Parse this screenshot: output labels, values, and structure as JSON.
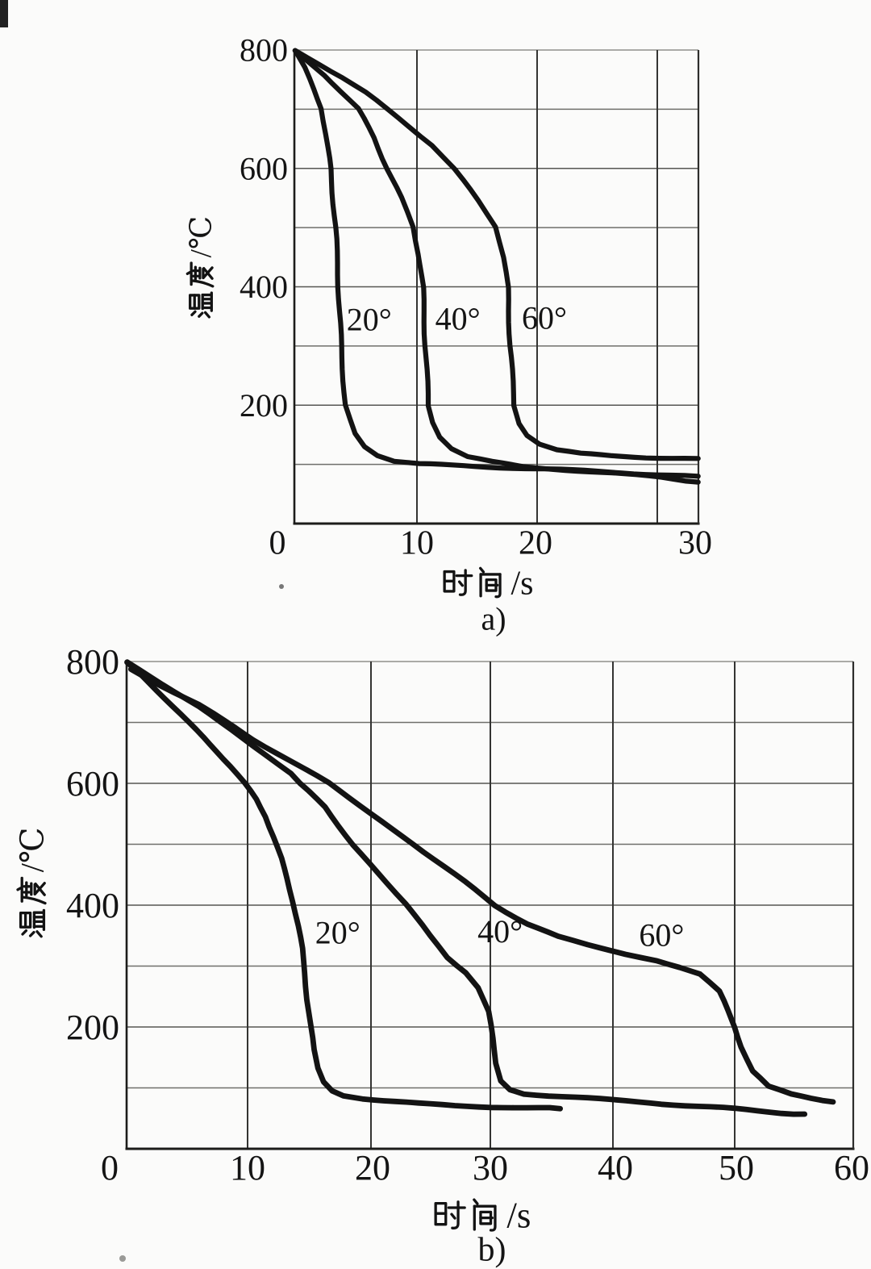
{
  "figure": {
    "background": "#fbfbfa",
    "ink": "#131313",
    "charts": [
      {
        "id": "a",
        "caption": "a)",
        "x_axis_title": "时间/s",
        "y_axis_title": "温度/℃",
        "type": "line",
        "xlim": [
          0,
          33.4
        ],
        "ylim": [
          0,
          800
        ],
        "x_ticks": [
          "0",
          "10",
          "20",
          "30"
        ],
        "y_ticks": [
          "200",
          "400",
          "600",
          "800"
        ],
        "grid": true,
        "series": [
          {
            "name": "20°",
            "label_t": 6.1,
            "label_T": 345,
            "points": [
              [
                0.1,
                798
              ],
              [
                0.8,
                772
              ],
              [
                1.6,
                733
              ],
              [
                2.24,
                700
              ],
              [
                2.7,
                635
              ],
              [
                2.96,
                600
              ],
              [
                3.36,
                500
              ],
              [
                3.6,
                400
              ],
              [
                3.82,
                300
              ],
              [
                4.14,
                200
              ],
              [
                4.5,
                176
              ],
              [
                4.9,
                153
              ],
              [
                5.7,
                131
              ],
              [
                6.8,
                116
              ],
              [
                8.2,
                106
              ],
              [
                10.2,
                101
              ],
              [
                12.9,
                98
              ],
              [
                16.9,
                95
              ],
              [
                21,
                92
              ],
              [
                25,
                88
              ],
              [
                29,
                84
              ],
              [
                33.4,
                80
              ]
            ]
          },
          {
            "name": "40°",
            "label_t": 13.4,
            "label_T": 346,
            "points": [
              [
                0,
                800
              ],
              [
                2.5,
                757
              ],
              [
                5.2,
                700
              ],
              [
                6.5,
                652
              ],
              [
                7.6,
                600
              ],
              [
                8.7,
                550
              ],
              [
                9.7,
                500
              ],
              [
                10.15,
                455
              ],
              [
                10.5,
                400
              ],
              [
                10.7,
                300
              ],
              [
                10.95,
                200
              ],
              [
                11.35,
                172
              ],
              [
                11.95,
                147
              ],
              [
                12.9,
                127
              ],
              [
                14.2,
                113
              ],
              [
                16.2,
                104
              ],
              [
                18.9,
                96
              ],
              [
                22.3,
                91
              ],
              [
                26.3,
                85
              ],
              [
                30.3,
                78
              ],
              [
                33.4,
                70
              ]
            ]
          },
          {
            "name": "60°",
            "label_t": 20.6,
            "label_T": 348,
            "points": [
              [
                0,
                800
              ],
              [
                2,
                777
              ],
              [
                4,
                753
              ],
              [
                5.8,
                728
              ],
              [
                7.5,
                700
              ],
              [
                9.4,
                670
              ],
              [
                11.3,
                640
              ],
              [
                13.1,
                600
              ],
              [
                15.1,
                545
              ],
              [
                16.6,
                500
              ],
              [
                17.2,
                450
              ],
              [
                17.56,
                400
              ],
              [
                17.76,
                300
              ],
              [
                18.1,
                200
              ],
              [
                18.56,
                170
              ],
              [
                19.2,
                150
              ],
              [
                20.2,
                135
              ],
              [
                21.6,
                125
              ],
              [
                23.6,
                118
              ],
              [
                26.3,
                114
              ],
              [
                29,
                112
              ],
              [
                33.4,
                110
              ]
            ]
          }
        ]
      },
      {
        "id": "b",
        "caption": "b)",
        "x_axis_title": "时间/s",
        "y_axis_title": "温度/℃",
        "type": "line",
        "xlim": [
          0,
          60
        ],
        "ylim": [
          0,
          800
        ],
        "x_ticks": [
          "0",
          "10",
          "20",
          "30",
          "40",
          "50",
          "60"
        ],
        "y_ticks": [
          "200",
          "400",
          "600",
          "800"
        ],
        "grid": true,
        "series": [
          {
            "name": "20°",
            "label_t": 17.3,
            "label_T": 355,
            "points": [
              [
                0,
                800
              ],
              [
                1.2,
                778
              ],
              [
                2.5,
                752
              ],
              [
                3.8,
                726
              ],
              [
                5.1,
                700
              ],
              [
                6.3,
                677
              ],
              [
                7.5,
                653
              ],
              [
                8.6,
                628
              ],
              [
                9.7,
                600
              ],
              [
                10.7,
                573
              ],
              [
                11.5,
                545
              ],
              [
                12.1,
                513
              ],
              [
                12.7,
                478
              ],
              [
                13.2,
                443
              ],
              [
                13.7,
                405
              ],
              [
                14.1,
                365
              ],
              [
                14.4,
                330
              ],
              [
                14.65,
                290
              ],
              [
                14.85,
                245
              ],
              [
                15.1,
                200
              ],
              [
                15.35,
                162
              ],
              [
                15.7,
                132
              ],
              [
                16.2,
                110
              ],
              [
                16.9,
                96
              ],
              [
                17.8,
                88
              ],
              [
                19.3,
                83
              ],
              [
                21,
                79
              ],
              [
                24,
                74
              ],
              [
                27,
                71
              ],
              [
                30,
                69
              ],
              [
                33,
                67
              ],
              [
                35.7,
                66
              ]
            ]
          },
          {
            "name": "40°",
            "label_t": 30.8,
            "label_T": 357,
            "points": [
              [
                0,
                800
              ],
              [
                2,
                775
              ],
              [
                4,
                750
              ],
              [
                6,
                725
              ],
              [
                7.7,
                700
              ],
              [
                9.5,
                676
              ],
              [
                11.5,
                648
              ],
              [
                13.5,
                617
              ],
              [
                14.2,
                600
              ],
              [
                16.3,
                560
              ],
              [
                18.5,
                500
              ],
              [
                20.5,
                455
              ],
              [
                23,
                400
              ],
              [
                24.9,
                350
              ],
              [
                26.4,
                315
              ],
              [
                28,
                290
              ],
              [
                29,
                265
              ],
              [
                29.8,
                225
              ],
              [
                30.2,
                180
              ],
              [
                30.5,
                140
              ],
              [
                30.9,
                112
              ],
              [
                31.6,
                98
              ],
              [
                32.7,
                91
              ],
              [
                34.7,
                87
              ],
              [
                37,
                84
              ],
              [
                40,
                80
              ],
              [
                43,
                76
              ],
              [
                46,
                71
              ],
              [
                49,
                67
              ],
              [
                52,
                62
              ],
              [
                54,
                59
              ],
              [
                55.9,
                57
              ]
            ]
          },
          {
            "name": "60°",
            "label_t": 44.0,
            "label_T": 351,
            "points": [
              [
                0.3,
                788
              ],
              [
                2,
                770
              ],
              [
                4,
                749
              ],
              [
                6,
                728
              ],
              [
                8.2,
                700
              ],
              [
                10.5,
                672
              ],
              [
                12.4,
                650
              ],
              [
                14.5,
                625
              ],
              [
                16.6,
                600
              ],
              [
                20,
                550
              ],
              [
                23.6,
                500
              ],
              [
                27,
                450
              ],
              [
                30.4,
                400
              ],
              [
                33,
                370
              ],
              [
                35.5,
                348
              ],
              [
                38,
                334
              ],
              [
                41,
                320
              ],
              [
                43.5,
                310
              ],
              [
                45.5,
                298
              ],
              [
                47.2,
                286
              ],
              [
                48.7,
                258
              ],
              [
                49.4,
                228
              ],
              [
                50,
                200
              ],
              [
                50.6,
                168
              ],
              [
                51.5,
                128
              ],
              [
                52.8,
                102
              ],
              [
                54.8,
                89
              ],
              [
                56.5,
                83
              ],
              [
                58.3,
                77
              ]
            ]
          }
        ]
      }
    ]
  }
}
